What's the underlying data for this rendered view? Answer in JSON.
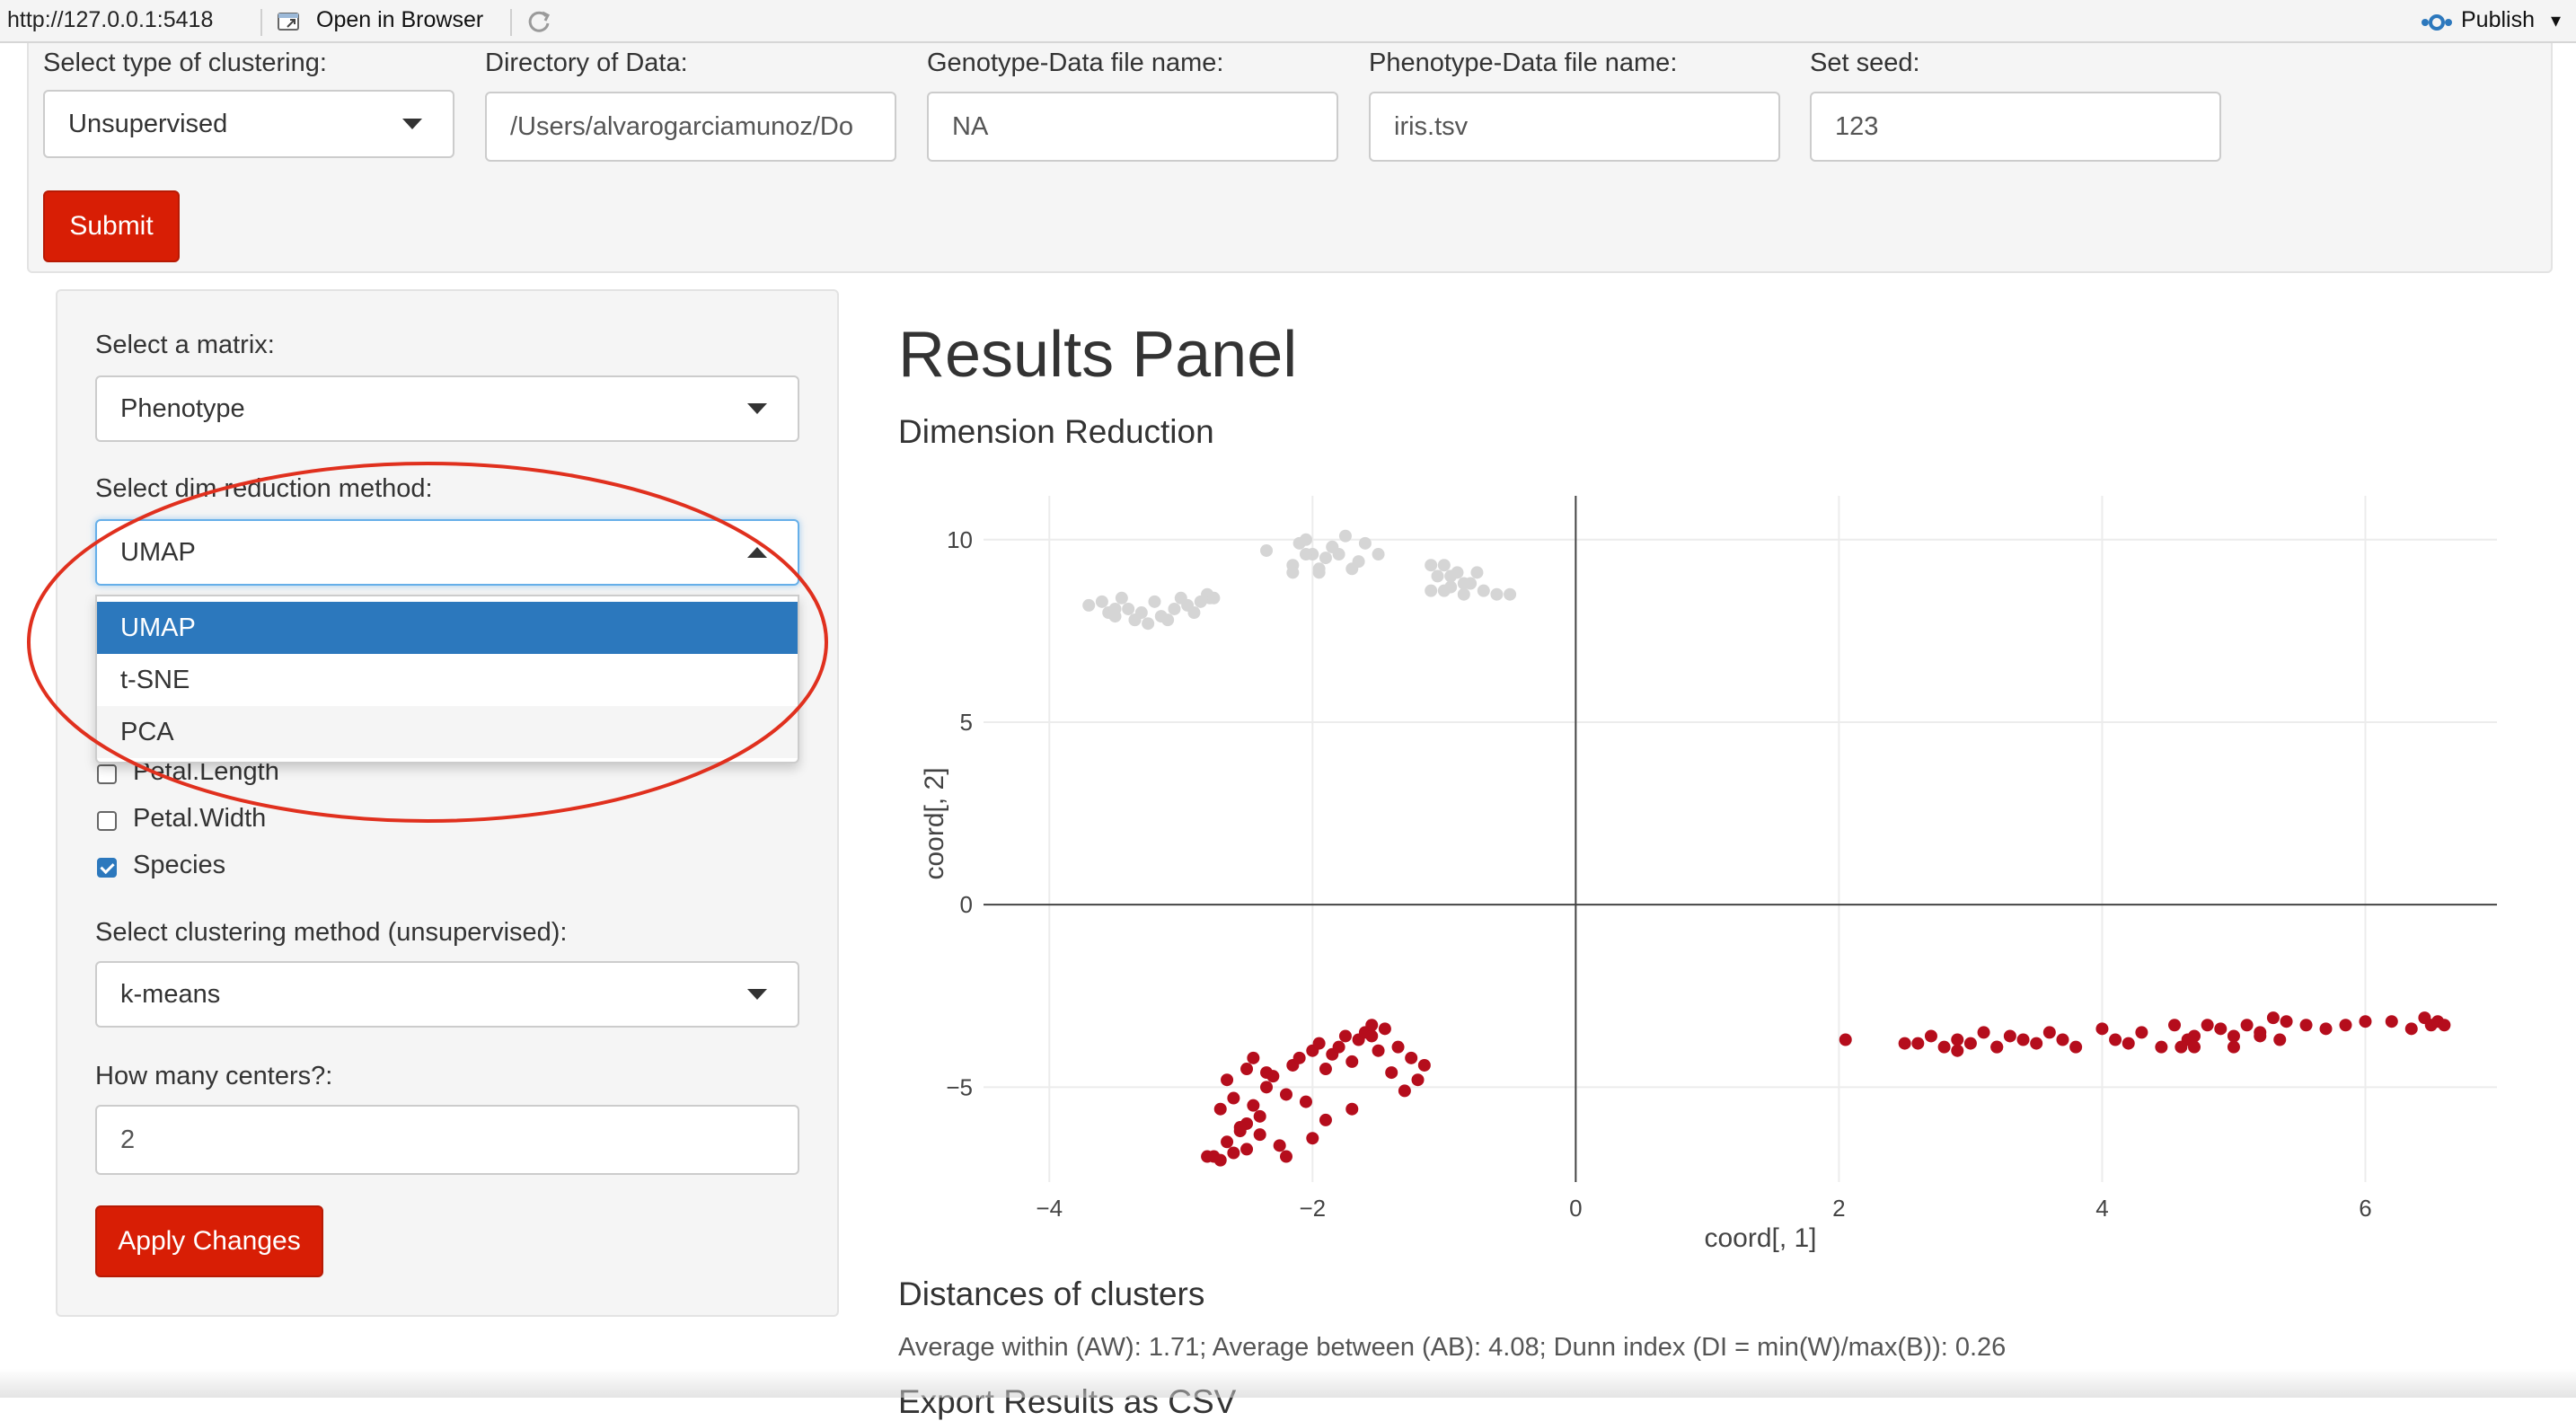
{
  "viewer": {
    "url": "http://127.0.0.1:5418",
    "open_in_browser": "Open in Browser",
    "publish": "Publish"
  },
  "top_form": {
    "clustering_type": {
      "label": "Select type of clustering:",
      "value": "Unsupervised"
    },
    "directory": {
      "label": "Directory of Data:",
      "value": "/Users/alvarogarciamunoz/Do"
    },
    "genotype_file": {
      "label": "Genotype-Data file name:",
      "value": "NA"
    },
    "phenotype_file": {
      "label": "Phenotype-Data file name:",
      "value": "iris.tsv"
    },
    "seed": {
      "label": "Set seed:",
      "value": "123"
    },
    "submit_label": "Submit"
  },
  "sidebar": {
    "matrix": {
      "label": "Select a matrix:",
      "value": "Phenotype"
    },
    "dim_reduction": {
      "label": "Select dim reduction method:",
      "value": "UMAP",
      "options": [
        "UMAP",
        "t-SNE",
        "PCA"
      ]
    },
    "variables": [
      {
        "label": "Petal.Length",
        "checked": false
      },
      {
        "label": "Petal.Width",
        "checked": false
      },
      {
        "label": "Species",
        "checked": true
      }
    ],
    "cluster_method": {
      "label": "Select clustering method (unsupervised):",
      "value": "k-means"
    },
    "centers": {
      "label": "How many centers?:",
      "value": "2"
    },
    "apply_label": "Apply Changes"
  },
  "main": {
    "title": "Results Panel",
    "dim_reduction_title": "Dimension Reduction",
    "distances_title": "Distances of clusters",
    "distances_text": "Average within (AW): 1.71; Average between (AB): 4.08; Dunn index (DI = min(W)/max(B)): 0.26",
    "next_section_title": "Export Results as CSV"
  },
  "colors": {
    "accent_red": "#d81e05",
    "selected_blue": "#2c78bd",
    "cluster_red": "#b50d1c",
    "cluster_grey": "#d5d5d5",
    "annotation_red": "#e0301e"
  },
  "chart_data": {
    "type": "scatter",
    "xlabel": "coord[, 1]",
    "ylabel": "coord[, 2]",
    "xlim": [
      -4.5,
      7.0
    ],
    "ylim": [
      -7.6,
      11.2
    ],
    "x_ticks": [
      -4,
      -2,
      0,
      2,
      4,
      6
    ],
    "y_ticks": [
      -5,
      0,
      5,
      10
    ],
    "x_tick_labels": [
      "−4",
      "−2",
      "0",
      "2",
      "4",
      "6"
    ],
    "y_tick_labels": [
      "−5",
      "0",
      "5",
      "10"
    ],
    "grid": true,
    "zero_lines": true,
    "series": [
      {
        "color": "#d5d5d5",
        "x": [
          -3.7,
          -3.55,
          -3.5,
          -3.45,
          -3.4,
          -3.35,
          -3.3,
          -3.25,
          -3.2,
          -3.15,
          -3.1,
          -3.05,
          -3.0,
          -2.95,
          -2.9,
          -2.85,
          -2.8,
          -2.78,
          -2.75,
          -3.6,
          -3.5,
          -3.35,
          -2.35,
          -2.15,
          -2.1,
          -2.05,
          -2.0,
          -1.95,
          -1.9,
          -1.85,
          -1.8,
          -1.75,
          -1.7,
          -1.65,
          -1.6,
          -1.5,
          -2.05,
          -1.85,
          -1.95,
          -2.15,
          -1.1,
          -1.05,
          -1.0,
          -0.95,
          -0.9,
          -0.85,
          -0.8,
          -0.7,
          -0.6,
          -0.5,
          -1.1,
          -0.95,
          -0.85,
          -0.75,
          -1.0
        ],
        "y": [
          8.2,
          8.0,
          7.9,
          8.4,
          8.1,
          7.8,
          8.0,
          7.7,
          8.3,
          7.9,
          7.8,
          8.1,
          8.4,
          8.2,
          8.0,
          8.3,
          8.5,
          8.4,
          8.4,
          8.3,
          8.1,
          7.8,
          9.7,
          9.3,
          9.9,
          10.0,
          9.6,
          9.1,
          9.5,
          9.8,
          9.6,
          10.1,
          9.2,
          9.4,
          9.9,
          9.6,
          9.6,
          9.8,
          9.2,
          9.1,
          8.6,
          9.0,
          9.3,
          8.7,
          9.1,
          8.5,
          8.8,
          8.6,
          8.5,
          8.5,
          9.3,
          9.0,
          8.8,
          9.1,
          8.6
        ],
        "marker_size": 7
      },
      {
        "color": "#b50d1c",
        "x": [
          -2.75,
          -2.7,
          -2.65,
          -2.6,
          -2.55,
          -2.5,
          -2.45,
          -2.4,
          -2.35,
          -2.3,
          -2.25,
          -2.2,
          -2.15,
          -2.1,
          -2.05,
          -2.0,
          -1.95,
          -1.9,
          -1.85,
          -1.8,
          -1.75,
          -1.7,
          -1.65,
          -1.6,
          -1.55,
          -1.5,
          -1.45,
          -1.4,
          -1.35,
          -1.3,
          -1.25,
          -1.2,
          -1.15,
          -2.6,
          -2.5,
          -2.4,
          -2.7,
          -2.55,
          -2.35,
          -2.2,
          -2.0,
          -1.9,
          -2.65,
          -2.45,
          -1.7,
          -1.55,
          -2.8,
          -2.5,
          2.05,
          2.5,
          2.6,
          2.7,
          2.8,
          2.9,
          3.0,
          3.1,
          3.2,
          3.3,
          3.4,
          3.5,
          3.6,
          3.7,
          3.8,
          4.0,
          4.1,
          4.2,
          4.3,
          4.45,
          4.55,
          4.65,
          4.7,
          4.8,
          4.9,
          5.0,
          5.1,
          5.2,
          5.3,
          5.4,
          5.55,
          5.7,
          5.85,
          6.0,
          6.2,
          6.35,
          6.45,
          6.5,
          6.55,
          6.6,
          4.7,
          5.0,
          5.2,
          3.2,
          2.9,
          4.6,
          5.35
        ],
        "y": [
          -6.9,
          -7.0,
          -6.5,
          -6.8,
          -6.2,
          -6.0,
          -5.5,
          -5.8,
          -5.0,
          -4.7,
          -6.6,
          -5.2,
          -4.4,
          -4.2,
          -5.4,
          -4.0,
          -3.8,
          -4.5,
          -4.1,
          -3.9,
          -3.6,
          -4.3,
          -3.7,
          -3.5,
          -3.6,
          -4.0,
          -3.4,
          -4.6,
          -3.9,
          -5.1,
          -4.2,
          -4.8,
          -4.4,
          -5.3,
          -6.7,
          -6.3,
          -5.6,
          -6.1,
          -4.6,
          -6.9,
          -6.4,
          -5.9,
          -4.8,
          -4.2,
          -5.6,
          -3.3,
          -6.9,
          -4.5,
          -3.7,
          -3.8,
          -3.8,
          -3.6,
          -3.9,
          -3.7,
          -3.8,
          -3.5,
          -3.9,
          -3.6,
          -3.7,
          -3.8,
          -3.5,
          -3.7,
          -3.9,
          -3.4,
          -3.7,
          -3.8,
          -3.5,
          -3.9,
          -3.3,
          -3.7,
          -3.6,
          -3.3,
          -3.4,
          -3.6,
          -3.3,
          -3.5,
          -3.1,
          -3.2,
          -3.3,
          -3.4,
          -3.3,
          -3.2,
          -3.2,
          -3.4,
          -3.1,
          -3.3,
          -3.2,
          -3.3,
          -3.9,
          -3.9,
          -3.6,
          -3.9,
          -4.0,
          -3.9,
          -3.7
        ],
        "marker_size": 7
      }
    ]
  }
}
